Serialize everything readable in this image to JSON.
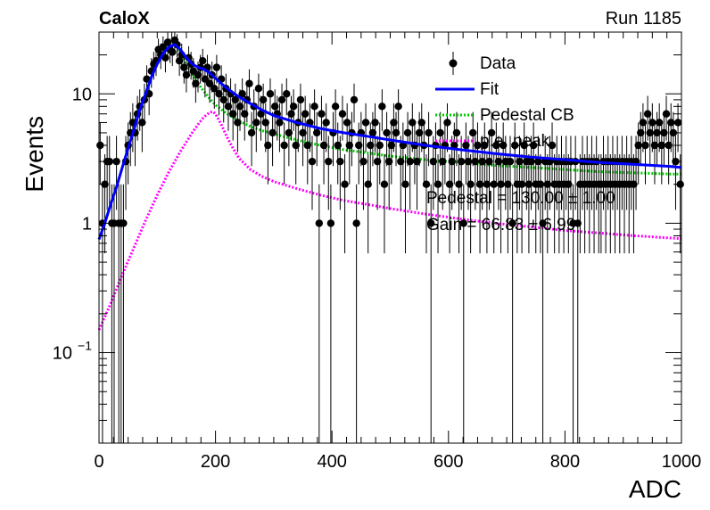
{
  "header": {
    "experiment": "CaloX",
    "run_label": "Run 1185"
  },
  "chart_data": {
    "type": "scatter",
    "xlabel": "ADC",
    "ylabel": "Events",
    "xlim": [
      0,
      1000
    ],
    "ylim": [
      0.02,
      30
    ],
    "y_scale": "log",
    "x_ticks": [
      {
        "value": 0,
        "label": "0"
      },
      {
        "value": 200,
        "label": "200"
      },
      {
        "value": 400,
        "label": "400"
      },
      {
        "value": 600,
        "label": "600"
      },
      {
        "value": 800,
        "label": "800"
      },
      {
        "value": 1000,
        "label": "1000"
      }
    ],
    "y_ticks": [
      {
        "value": 0.1,
        "label": "10",
        "exp": "−1"
      },
      {
        "value": 1,
        "label": "1",
        "exp": ""
      },
      {
        "value": 10,
        "label": "10",
        "exp": ""
      }
    ],
    "grid": false,
    "legend_position": "top-right",
    "legend": [
      {
        "name": "Data",
        "style": "marker",
        "color": "#000000"
      },
      {
        "name": "Fit",
        "style": "solid",
        "color": "#0000ff"
      },
      {
        "name": "Pedestal CB",
        "style": "dotted",
        "color": "#00cc00"
      },
      {
        "name": "p.e. peak",
        "style": "dotted",
        "color": "#ff00ff"
      }
    ],
    "annotations": [
      {
        "text": "Pedestal = 130.00 ± 1.00"
      },
      {
        "text": "Gain = 66.83 ± 6.99"
      }
    ],
    "data_points": [
      [
        2,
        4
      ],
      [
        6,
        1
      ],
      [
        10,
        2
      ],
      [
        14,
        3
      ],
      [
        18,
        3
      ],
      [
        22,
        1
      ],
      [
        26,
        1
      ],
      [
        30,
        3
      ],
      [
        34,
        1
      ],
      [
        38,
        1
      ],
      [
        42,
        1
      ],
      [
        46,
        3
      ],
      [
        50,
        4
      ],
      [
        54,
        5
      ],
      [
        58,
        6
      ],
      [
        62,
        5
      ],
      [
        66,
        7
      ],
      [
        70,
        8
      ],
      [
        74,
        6
      ],
      [
        78,
        9
      ],
      [
        82,
        13
      ],
      [
        86,
        10
      ],
      [
        90,
        15
      ],
      [
        94,
        17
      ],
      [
        98,
        18
      ],
      [
        102,
        22
      ],
      [
        106,
        20
      ],
      [
        110,
        23
      ],
      [
        114,
        19
      ],
      [
        118,
        25
      ],
      [
        122,
        22
      ],
      [
        126,
        21
      ],
      [
        130,
        26
      ],
      [
        134,
        24
      ],
      [
        138,
        18
      ],
      [
        142,
        20
      ],
      [
        146,
        16
      ],
      [
        150,
        14
      ],
      [
        154,
        19
      ],
      [
        158,
        17
      ],
      [
        162,
        15
      ],
      [
        166,
        12
      ],
      [
        170,
        14
      ],
      [
        174,
        16
      ],
      [
        178,
        18
      ],
      [
        182,
        13
      ],
      [
        186,
        16
      ],
      [
        190,
        12
      ],
      [
        194,
        14
      ],
      [
        198,
        11
      ],
      [
        202,
        16
      ],
      [
        206,
        10
      ],
      [
        210,
        13
      ],
      [
        214,
        9
      ],
      [
        218,
        11
      ],
      [
        222,
        8
      ],
      [
        226,
        10
      ],
      [
        230,
        7
      ],
      [
        234,
        9
      ],
      [
        238,
        6
      ],
      [
        242,
        8
      ],
      [
        246,
        10
      ],
      [
        250,
        7
      ],
      [
        254,
        9
      ],
      [
        258,
        12
      ],
      [
        262,
        5
      ],
      [
        266,
        8
      ],
      [
        270,
        6
      ],
      [
        274,
        11
      ],
      [
        278,
        7
      ],
      [
        282,
        9
      ],
      [
        286,
        6
      ],
      [
        290,
        4
      ],
      [
        294,
        10
      ],
      [
        298,
        5
      ],
      [
        302,
        8
      ],
      [
        306,
        7
      ],
      [
        310,
        6
      ],
      [
        314,
        9
      ],
      [
        318,
        4
      ],
      [
        322,
        10
      ],
      [
        326,
        5
      ],
      [
        330,
        7
      ],
      [
        334,
        8
      ],
      [
        338,
        4
      ],
      [
        342,
        6
      ],
      [
        346,
        9
      ],
      [
        350,
        5
      ],
      [
        354,
        7
      ],
      [
        358,
        4
      ],
      [
        362,
        6
      ],
      [
        366,
        3
      ],
      [
        370,
        8
      ],
      [
        374,
        5
      ],
      [
        378,
        1
      ],
      [
        382,
        7
      ],
      [
        386,
        4
      ],
      [
        390,
        6
      ],
      [
        394,
        3
      ],
      [
        398,
        1
      ],
      [
        402,
        5
      ],
      [
        406,
        8
      ],
      [
        410,
        4
      ],
      [
        414,
        3
      ],
      [
        418,
        7
      ],
      [
        422,
        2
      ],
      [
        426,
        6
      ],
      [
        430,
        4
      ],
      [
        434,
        5
      ],
      [
        438,
        9
      ],
      [
        442,
        1
      ],
      [
        446,
        4
      ],
      [
        450,
        5
      ],
      [
        454,
        3
      ],
      [
        458,
        6
      ],
      [
        462,
        2
      ],
      [
        466,
        4
      ],
      [
        470,
        5
      ],
      [
        474,
        6
      ],
      [
        478,
        3
      ],
      [
        482,
        4
      ],
      [
        486,
        8
      ],
      [
        490,
        2
      ],
      [
        494,
        5
      ],
      [
        498,
        3
      ],
      [
        502,
        4
      ],
      [
        506,
        6
      ],
      [
        510,
        5
      ],
      [
        514,
        8
      ],
      [
        518,
        3
      ],
      [
        522,
        4
      ],
      [
        526,
        2
      ],
      [
        530,
        5
      ],
      [
        534,
        3
      ],
      [
        538,
        6
      ],
      [
        542,
        4
      ],
      [
        546,
        3
      ],
      [
        550,
        5
      ],
      [
        554,
        6
      ],
      [
        558,
        4
      ],
      [
        562,
        2
      ],
      [
        566,
        5
      ],
      [
        570,
        1
      ],
      [
        574,
        3
      ],
      [
        578,
        4
      ],
      [
        582,
        2
      ],
      [
        586,
        5
      ],
      [
        590,
        3
      ],
      [
        594,
        4
      ],
      [
        598,
        6
      ],
      [
        602,
        2
      ],
      [
        606,
        3
      ],
      [
        610,
        4
      ],
      [
        614,
        5
      ],
      [
        618,
        2
      ],
      [
        622,
        3
      ],
      [
        626,
        1
      ],
      [
        630,
        4
      ],
      [
        634,
        3
      ],
      [
        638,
        2
      ],
      [
        642,
        5
      ],
      [
        646,
        3
      ],
      [
        650,
        4
      ],
      [
        654,
        2
      ],
      [
        658,
        3
      ],
      [
        662,
        4
      ],
      [
        666,
        2
      ],
      [
        670,
        3
      ],
      [
        674,
        5
      ],
      [
        678,
        2
      ],
      [
        682,
        4
      ],
      [
        686,
        3
      ],
      [
        690,
        2
      ],
      [
        694,
        4
      ],
      [
        698,
        3
      ],
      [
        702,
        2
      ],
      [
        706,
        3
      ],
      [
        710,
        1
      ],
      [
        714,
        4
      ],
      [
        718,
        2
      ],
      [
        722,
        3
      ],
      [
        726,
        2
      ],
      [
        730,
        4
      ],
      [
        734,
        3
      ],
      [
        738,
        2
      ],
      [
        742,
        3
      ],
      [
        746,
        4
      ],
      [
        750,
        2
      ],
      [
        754,
        3
      ],
      [
        758,
        2
      ],
      [
        762,
        1
      ],
      [
        766,
        3
      ],
      [
        770,
        2
      ],
      [
        774,
        3
      ],
      [
        778,
        4
      ],
      [
        782,
        2
      ],
      [
        786,
        3
      ],
      [
        790,
        2
      ],
      [
        794,
        3
      ],
      [
        798,
        2
      ],
      [
        802,
        3
      ],
      [
        806,
        2
      ],
      [
        810,
        3
      ],
      [
        814,
        1
      ],
      [
        818,
        3
      ],
      [
        822,
        1
      ],
      [
        826,
        2
      ],
      [
        830,
        3
      ],
      [
        834,
        2
      ],
      [
        838,
        3
      ],
      [
        842,
        2
      ],
      [
        846,
        3
      ],
      [
        850,
        2
      ],
      [
        854,
        3
      ],
      [
        858,
        2
      ],
      [
        862,
        2
      ],
      [
        866,
        3
      ],
      [
        870,
        2
      ],
      [
        874,
        3
      ],
      [
        878,
        2
      ],
      [
        882,
        3
      ],
      [
        886,
        2
      ],
      [
        890,
        3
      ],
      [
        894,
        2
      ],
      [
        898,
        3
      ],
      [
        902,
        2
      ],
      [
        906,
        3
      ],
      [
        910,
        2
      ],
      [
        914,
        3
      ],
      [
        918,
        2
      ],
      [
        922,
        3
      ],
      [
        926,
        4
      ],
      [
        930,
        5
      ],
      [
        934,
        6
      ],
      [
        938,
        4
      ],
      [
        942,
        7
      ],
      [
        946,
        5
      ],
      [
        950,
        6
      ],
      [
        954,
        4
      ],
      [
        958,
        5
      ],
      [
        962,
        6
      ],
      [
        966,
        4
      ],
      [
        970,
        5
      ],
      [
        974,
        7
      ],
      [
        978,
        4
      ],
      [
        982,
        6
      ],
      [
        986,
        5
      ],
      [
        990,
        3
      ],
      [
        994,
        6
      ],
      [
        998,
        2
      ]
    ],
    "series": [
      {
        "name": "Fit",
        "color": "#0000ff",
        "style": "solid",
        "x": [
          0,
          10,
          20,
          30,
          40,
          50,
          60,
          70,
          80,
          90,
          100,
          110,
          120,
          130,
          140,
          150,
          160,
          170,
          180,
          190,
          200,
          210,
          220,
          230,
          240,
          260,
          280,
          300,
          340,
          380,
          420,
          460,
          500,
          560,
          620,
          680,
          740,
          800,
          860,
          920,
          980,
          1000
        ],
        "y": [
          0.75,
          1.0,
          1.4,
          1.9,
          2.7,
          3.8,
          5.3,
          7.5,
          10,
          13.5,
          17,
          20.5,
          23,
          24,
          22,
          19,
          17,
          16,
          15.5,
          14.5,
          13.2,
          12,
          11,
          10.2,
          9.5,
          8.4,
          7.5,
          6.8,
          6.0,
          5.4,
          5.0,
          4.7,
          4.4,
          4.0,
          3.7,
          3.45,
          3.25,
          3.1,
          2.95,
          2.85,
          2.75,
          2.7
        ]
      },
      {
        "name": "Pedestal CB",
        "color": "#00cc00",
        "style": "dotted",
        "x": [
          0,
          10,
          20,
          30,
          40,
          50,
          60,
          70,
          80,
          90,
          100,
          110,
          120,
          130,
          140,
          150,
          160,
          170,
          180,
          190,
          200,
          220,
          240,
          260,
          280,
          300,
          340,
          380,
          420,
          460,
          500,
          560,
          620,
          680,
          740,
          800,
          860,
          920,
          980,
          1000
        ],
        "y": [
          0.75,
          1.0,
          1.4,
          1.9,
          2.7,
          3.8,
          5.3,
          7.5,
          10,
          13.5,
          17,
          20.5,
          23,
          24,
          21,
          17,
          14,
          12,
          10.5,
          9.2,
          8.2,
          7.0,
          6.2,
          5.6,
          5.2,
          4.9,
          4.4,
          4.0,
          3.7,
          3.5,
          3.3,
          3.1,
          2.95,
          2.8,
          2.7,
          2.6,
          2.5,
          2.45,
          2.4,
          2.4
        ]
      },
      {
        "name": "p.e. peak",
        "color": "#ff00ff",
        "style": "dotted",
        "x": [
          0,
          20,
          40,
          60,
          80,
          100,
          120,
          140,
          160,
          170,
          180,
          190,
          195,
          200,
          210,
          220,
          230,
          240,
          260,
          280,
          300,
          340,
          380,
          420,
          460,
          500,
          560,
          620,
          680,
          740,
          800,
          860,
          920,
          980,
          1000
        ],
        "y": [
          0.15,
          0.24,
          0.4,
          0.65,
          1.05,
          1.65,
          2.5,
          3.6,
          5.0,
          5.8,
          6.6,
          7.2,
          7.3,
          7.0,
          5.8,
          4.6,
          3.8,
          3.2,
          2.6,
          2.3,
          2.1,
          1.85,
          1.65,
          1.5,
          1.4,
          1.3,
          1.18,
          1.08,
          1.0,
          0.94,
          0.88,
          0.84,
          0.8,
          0.77,
          0.76
        ]
      }
    ]
  }
}
